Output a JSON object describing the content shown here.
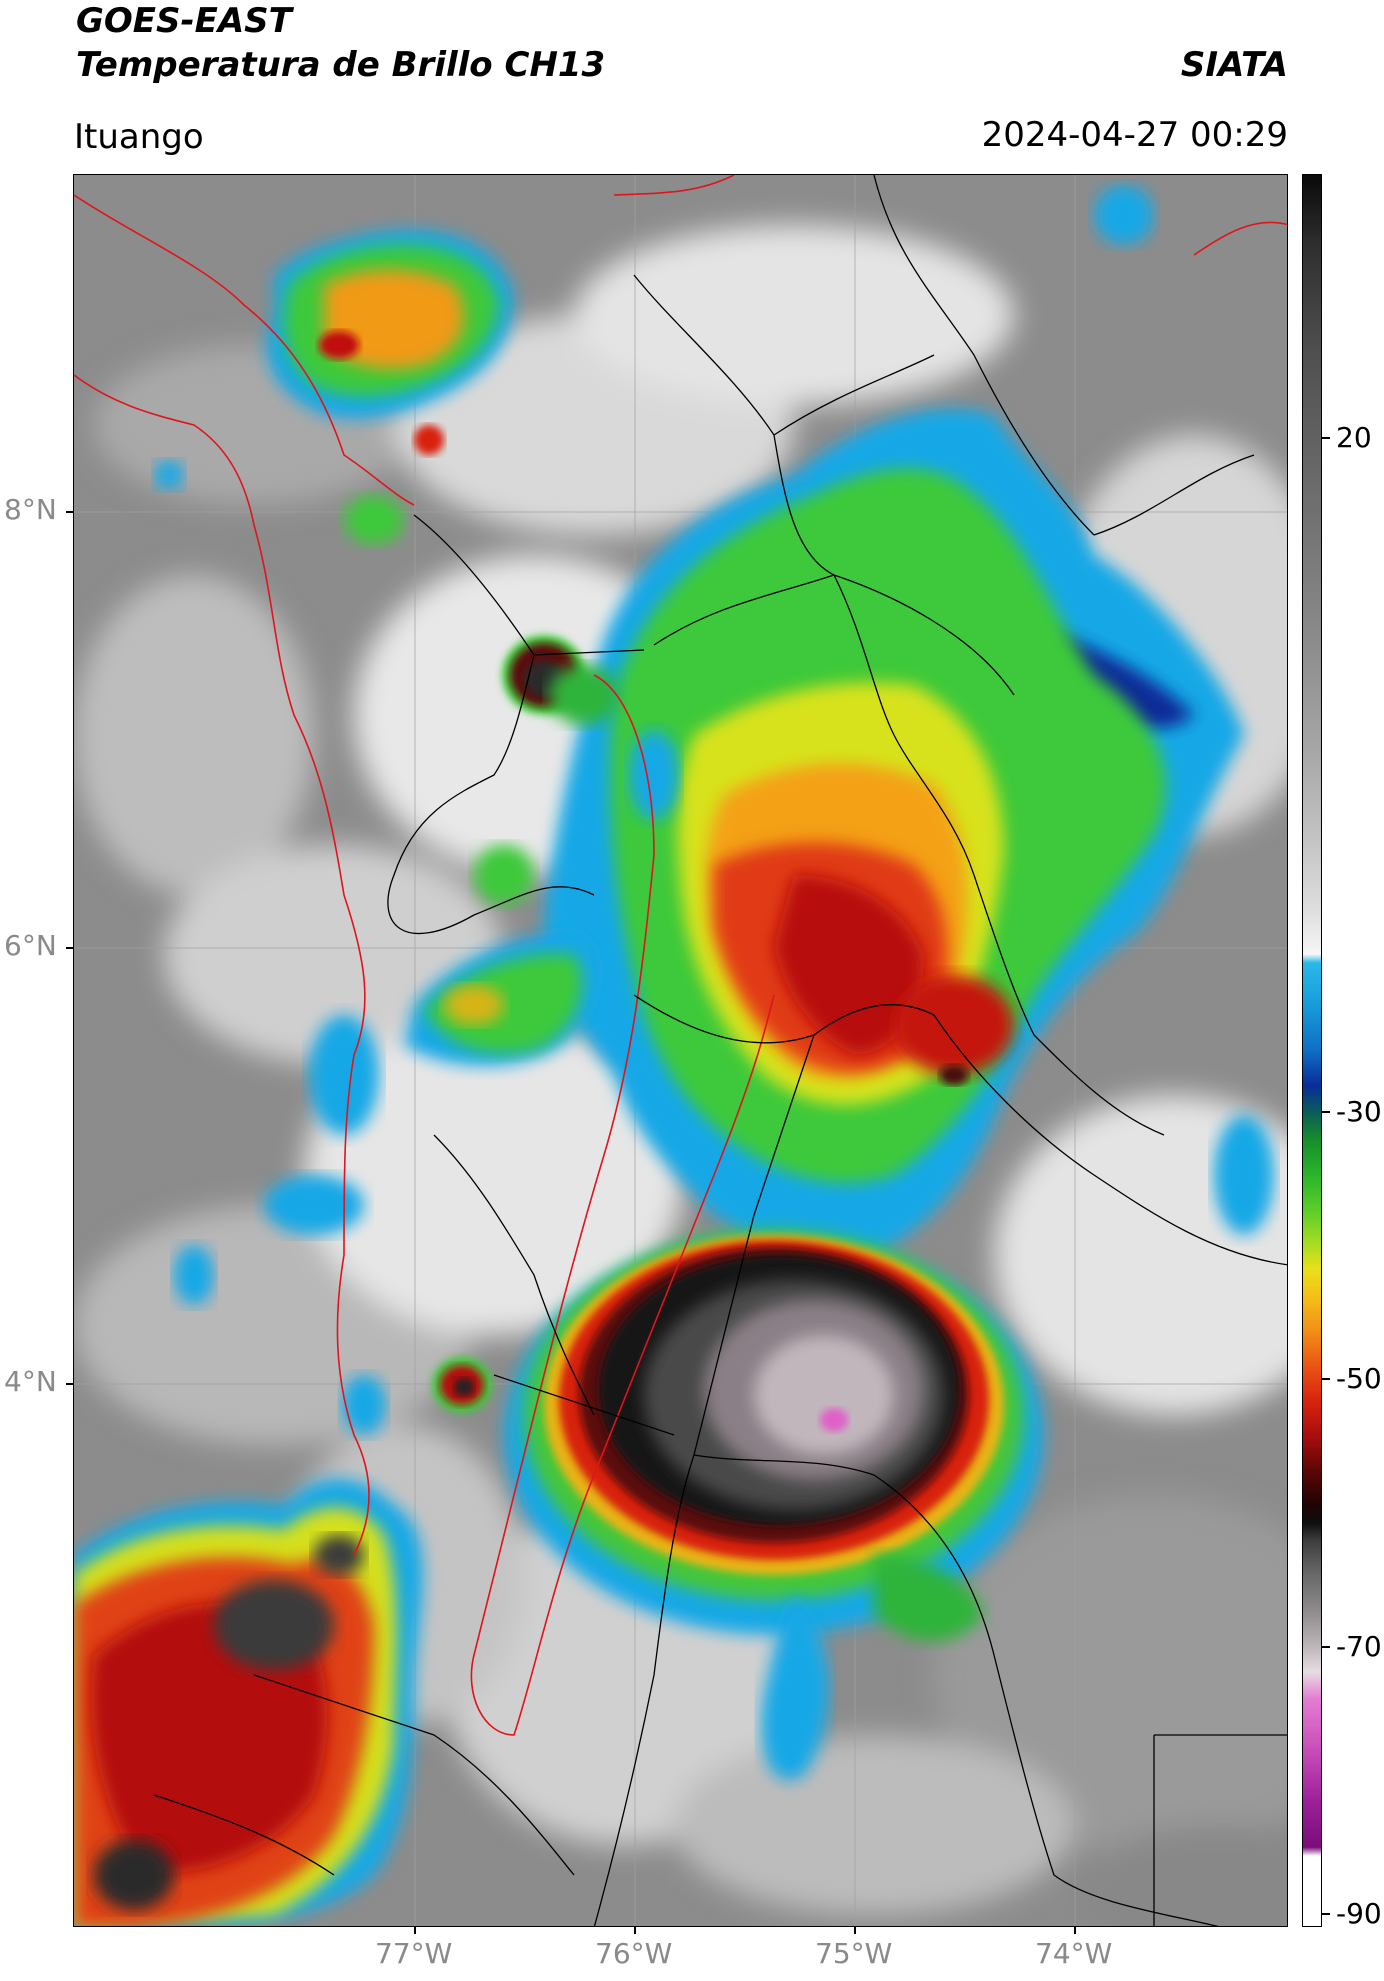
{
  "header": {
    "satellite": "GOES-EAST",
    "product": "Temperatura de Brillo CH13",
    "organization": "SIATA",
    "region": "Ituango",
    "datetime": "2024-04-27 00:29"
  },
  "map": {
    "lat_labels": [
      "8°N",
      "6°N",
      "4°N"
    ],
    "lon_labels": [
      "77°W",
      "76°W",
      "75°W",
      "74°W"
    ],
    "extent": {
      "lon": [
        -78.5,
        -73.0
      ],
      "lat": [
        2.1,
        9.5
      ]
    },
    "border_colors": {
      "international": "#e0141c",
      "departments": "#000000"
    }
  },
  "colorbar": {
    "ticks": [
      "20",
      "-30",
      "-50",
      "-70",
      "-90"
    ],
    "range": [
      -90,
      40
    ]
  }
}
